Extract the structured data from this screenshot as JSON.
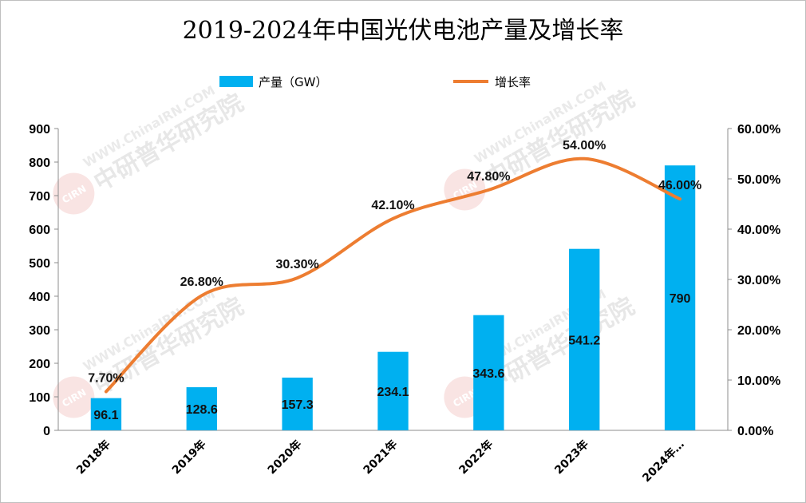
{
  "chart_data": {
    "type": "bar+line",
    "title": "2019-2024年中国光伏电池产量及增长率",
    "categories": [
      "2018年",
      "2019年",
      "2020年",
      "2021年",
      "2022年",
      "2023年",
      "2024年…"
    ],
    "series": [
      {
        "name": "产量（GW）",
        "type": "bar",
        "axis": "left",
        "values": [
          96.1,
          128.6,
          157.3,
          234.1,
          343.6,
          541.2,
          790
        ],
        "labels": [
          "96.1",
          "128.6",
          "157.3",
          "234.1",
          "343.6",
          "541.2",
          "790"
        ],
        "color": "#00b0f0"
      },
      {
        "name": "增长率",
        "type": "line",
        "axis": "right",
        "values": [
          7.7,
          26.8,
          30.3,
          42.1,
          47.8,
          54.0,
          46.0
        ],
        "labels": [
          "7.70%",
          "26.80%",
          "30.30%",
          "42.10%",
          "47.80%",
          "54.00%",
          "46.00%"
        ],
        "color": "#ed7d31"
      }
    ],
    "y_left": {
      "range": [
        0,
        900
      ],
      "ticks": [
        "0",
        "100",
        "200",
        "300",
        "400",
        "500",
        "600",
        "700",
        "800",
        "900"
      ]
    },
    "y_right": {
      "range": [
        0,
        60
      ],
      "ticks": [
        "0.00%",
        "10.00%",
        "20.00%",
        "30.00%",
        "40.00%",
        "50.00%",
        "60.00%"
      ]
    },
    "legend_position": "top",
    "grid": false,
    "watermark": {
      "text_url": "WWW.ChinaIRN.COM",
      "text_cn": "中研普华研究院",
      "logo": "CIRN"
    }
  }
}
